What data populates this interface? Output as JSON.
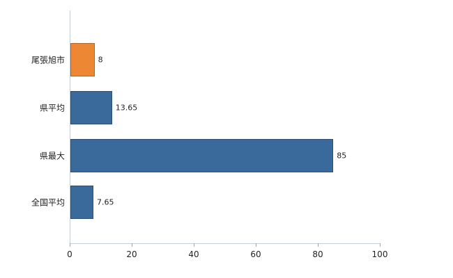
{
  "chart_data": {
    "type": "bar",
    "orientation": "horizontal",
    "title": "",
    "categories": [
      "尾張旭市",
      "県平均",
      "県最大",
      "全国平均"
    ],
    "values": [
      8,
      13.65,
      85,
      7.65
    ],
    "value_labels": [
      "8",
      "13.65",
      "85",
      "7.65"
    ],
    "bar_colors": [
      "#ED8733",
      "#3A699C",
      "#3A699C",
      "#3A699C"
    ],
    "xlim": [
      0,
      100
    ],
    "x_ticks": [
      0,
      20,
      40,
      60,
      80,
      100
    ],
    "grid": false,
    "legend": "none",
    "axis_color": "#c3ced6"
  }
}
